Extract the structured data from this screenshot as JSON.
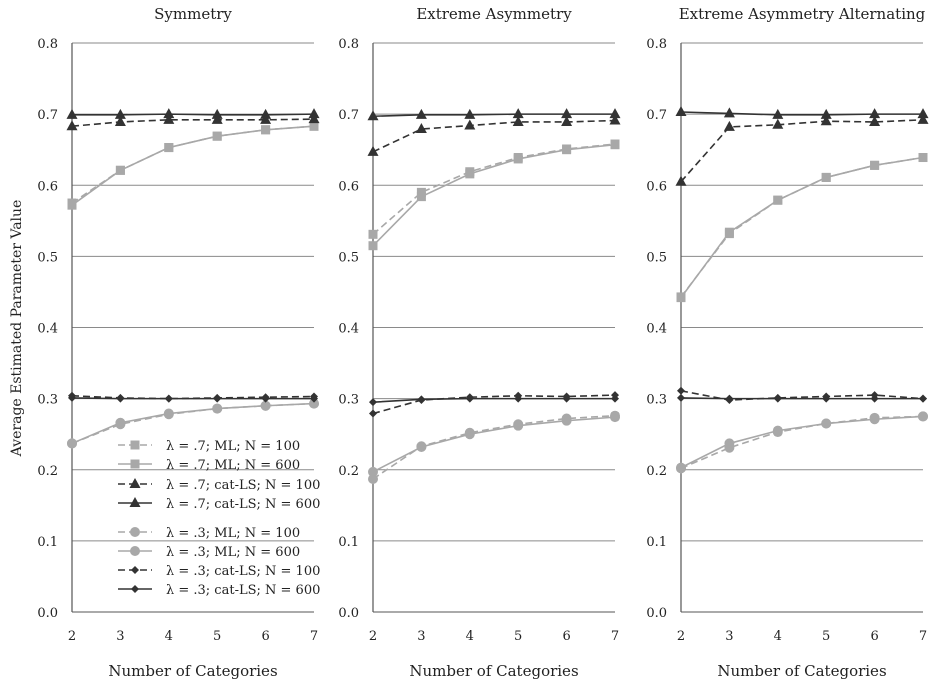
{
  "figure": {
    "ylabel": "Average Estimated Parameter Value"
  },
  "legend": {
    "entries": [
      {
        "label": "λ = .7; ML; N = 100",
        "color": "#a8a8a8",
        "dash": true,
        "marker": "square"
      },
      {
        "label": "λ = .7; ML; N = 600",
        "color": "#a8a8a8",
        "dash": false,
        "marker": "square"
      },
      {
        "label": "λ = .7; cat-LS; N = 100",
        "color": "#333333",
        "dash": true,
        "marker": "triangle"
      },
      {
        "label": "λ = .7; cat-LS; N = 600",
        "color": "#333333",
        "dash": false,
        "marker": "triangle"
      },
      {
        "label": "λ = .3; ML; N = 100",
        "color": "#a8a8a8",
        "dash": true,
        "marker": "circle"
      },
      {
        "label": "λ = .3; ML; N = 600",
        "color": "#a8a8a8",
        "dash": false,
        "marker": "circle"
      },
      {
        "label": "λ = .3; cat-LS; N = 100",
        "color": "#333333",
        "dash": true,
        "marker": "diamond"
      },
      {
        "label": "λ = .3; cat-LS; N = 600",
        "color": "#333333",
        "dash": false,
        "marker": "diamond"
      }
    ]
  },
  "chart_data": [
    {
      "type": "line",
      "title": "Symmetry",
      "xlabel": "Number of Categories",
      "ylabel": "Average Estimated Parameter Value",
      "x": [
        2,
        3,
        4,
        5,
        6,
        7
      ],
      "xticks": [
        "2",
        "3",
        "4",
        "5",
        "6",
        "7"
      ],
      "yticks": [
        "0.0",
        "0.1",
        "0.2",
        "0.3",
        "0.4",
        "0.5",
        "0.6",
        "0.7",
        "0.8"
      ],
      "ylim": [
        0,
        0.8
      ],
      "grid": "horizontal",
      "series": [
        {
          "name": "λ = .7; ML; N = 100",
          "values": [
            0.575,
            0.621,
            0.653,
            0.669,
            0.678,
            0.683
          ]
        },
        {
          "name": "λ = .7; ML; N = 600",
          "values": [
            0.572,
            0.621,
            0.653,
            0.669,
            0.678,
            0.683
          ]
        },
        {
          "name": "λ = .7; cat-LS; N = 100",
          "values": [
            0.683,
            0.689,
            0.692,
            0.692,
            0.692,
            0.693
          ]
        },
        {
          "name": "λ = .7; cat-LS; N = 600",
          "values": [
            0.699,
            0.699,
            0.7,
            0.699,
            0.699,
            0.7
          ]
        },
        {
          "name": "λ = .3; ML; N = 100",
          "values": [
            0.237,
            0.264,
            0.278,
            0.286,
            0.29,
            0.293
          ]
        },
        {
          "name": "λ = .3; ML; N = 600",
          "values": [
            0.237,
            0.266,
            0.279,
            0.286,
            0.29,
            0.293
          ]
        },
        {
          "name": "λ = .3; cat-LS; N = 100",
          "values": [
            0.304,
            0.301,
            0.3,
            0.301,
            0.302,
            0.303
          ]
        },
        {
          "name": "λ = .3; cat-LS; N = 600",
          "values": [
            0.301,
            0.3,
            0.3,
            0.3,
            0.3,
            0.3
          ]
        }
      ]
    },
    {
      "type": "line",
      "title": "Extreme Asymmetry",
      "xlabel": "Number of Categories",
      "ylabel": "",
      "x": [
        2,
        3,
        4,
        5,
        6,
        7
      ],
      "xticks": [
        "2",
        "3",
        "4",
        "5",
        "6",
        "7"
      ],
      "yticks": [
        "0.0",
        "0.1",
        "0.2",
        "0.3",
        "0.4",
        "0.5",
        "0.6",
        "0.7",
        "0.8"
      ],
      "ylim": [
        0,
        0.8
      ],
      "grid": "horizontal",
      "series": [
        {
          "name": "λ = .7; ML; N = 100",
          "values": [
            0.531,
            0.59,
            0.619,
            0.639,
            0.651,
            0.658
          ]
        },
        {
          "name": "λ = .7; ML; N = 600",
          "values": [
            0.515,
            0.584,
            0.616,
            0.637,
            0.65,
            0.657
          ]
        },
        {
          "name": "λ = .7; cat-LS; N = 100",
          "values": [
            0.647,
            0.679,
            0.684,
            0.689,
            0.689,
            0.691
          ]
        },
        {
          "name": "λ = .7; cat-LS; N = 600",
          "values": [
            0.697,
            0.699,
            0.699,
            0.7,
            0.7,
            0.7
          ]
        },
        {
          "name": "λ = .3; ML; N = 100",
          "values": [
            0.187,
            0.233,
            0.252,
            0.264,
            0.272,
            0.276
          ]
        },
        {
          "name": "λ = .3; ML; N = 600",
          "values": [
            0.197,
            0.232,
            0.25,
            0.262,
            0.269,
            0.274
          ]
        },
        {
          "name": "λ = .3; cat-LS; N = 100",
          "values": [
            0.279,
            0.298,
            0.302,
            0.304,
            0.303,
            0.305
          ]
        },
        {
          "name": "λ = .3; cat-LS; N = 600",
          "values": [
            0.295,
            0.299,
            0.3,
            0.3,
            0.3,
            0.3
          ]
        }
      ]
    },
    {
      "type": "line",
      "title": "Extreme Asymmetry Alternating",
      "xlabel": "Number of Categories",
      "ylabel": "",
      "x": [
        2,
        3,
        4,
        5,
        6,
        7
      ],
      "xticks": [
        "2",
        "3",
        "4",
        "5",
        "6",
        "7"
      ],
      "yticks": [
        "0.0",
        "0.1",
        "0.2",
        "0.3",
        "0.4",
        "0.5",
        "0.6",
        "0.7",
        "0.8"
      ],
      "ylim": [
        0,
        0.8
      ],
      "grid": "horizontal",
      "series": [
        {
          "name": "λ = .7; ML; N = 100",
          "values": [
            0.443,
            0.532,
            0.579,
            0.611,
            0.628,
            0.639
          ]
        },
        {
          "name": "λ = .7; ML; N = 600",
          "values": [
            0.442,
            0.534,
            0.579,
            0.611,
            0.628,
            0.639
          ]
        },
        {
          "name": "λ = .7; cat-LS; N = 100",
          "values": [
            0.605,
            0.682,
            0.685,
            0.69,
            0.689,
            0.692
          ]
        },
        {
          "name": "λ = .7; cat-LS; N = 600",
          "values": [
            0.703,
            0.701,
            0.699,
            0.699,
            0.7,
            0.7
          ]
        },
        {
          "name": "λ = .3; ML; N = 100",
          "values": [
            0.202,
            0.231,
            0.253,
            0.265,
            0.273,
            0.275
          ]
        },
        {
          "name": "λ = .3; ML; N = 600",
          "values": [
            0.203,
            0.237,
            0.255,
            0.265,
            0.271,
            0.275
          ]
        },
        {
          "name": "λ = .3; cat-LS; N = 100",
          "values": [
            0.311,
            0.298,
            0.301,
            0.303,
            0.305,
            0.3
          ]
        },
        {
          "name": "λ = .3; cat-LS; N = 600",
          "values": [
            0.301,
            0.3,
            0.3,
            0.3,
            0.3,
            0.3
          ]
        }
      ]
    }
  ]
}
